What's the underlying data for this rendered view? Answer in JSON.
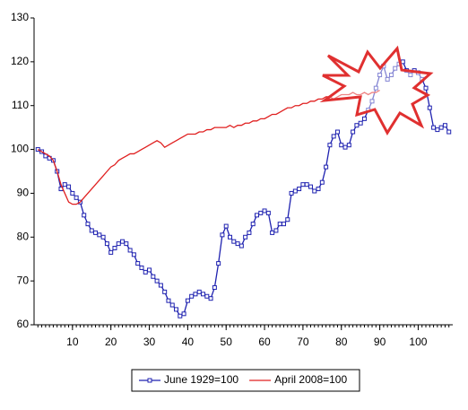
{
  "chart_data": {
    "type": "line",
    "x": [
      1,
      2,
      3,
      4,
      5,
      6,
      7,
      8,
      9,
      10,
      11,
      12,
      13,
      14,
      15,
      16,
      17,
      18,
      19,
      20,
      21,
      22,
      23,
      24,
      25,
      26,
      27,
      28,
      29,
      30,
      31,
      32,
      33,
      34,
      35,
      36,
      37,
      38,
      39,
      40,
      41,
      42,
      43,
      44,
      45,
      46,
      47,
      48,
      49,
      50,
      51,
      52,
      53,
      54,
      55,
      56,
      57,
      58,
      59,
      60,
      61,
      62,
      63,
      64,
      65,
      66,
      67,
      68,
      69,
      70,
      71,
      72,
      73,
      74,
      75,
      76,
      77,
      78,
      79,
      80,
      81,
      82,
      83,
      84,
      85,
      86,
      87,
      88,
      89,
      90,
      91,
      92,
      93,
      94,
      95,
      96,
      97,
      98,
      99,
      100,
      101,
      102,
      103,
      104,
      105,
      106,
      107,
      108
    ],
    "series": [
      {
        "name": "June 1929=100",
        "color": "#1f22b0",
        "marker": "square",
        "values": [
          100,
          99.5,
          98.5,
          98,
          97.5,
          95,
          91,
          92,
          91.5,
          90,
          89,
          88,
          85,
          83,
          81.5,
          81,
          80.5,
          80,
          78.5,
          76.5,
          77.5,
          78.5,
          79,
          78.5,
          77,
          76,
          74,
          73,
          72,
          72.5,
          71,
          70,
          69,
          67.5,
          65.5,
          64.5,
          63.5,
          62,
          62.5,
          65.5,
          66.5,
          67,
          67.5,
          67,
          66.5,
          66,
          68.5,
          74,
          80.5,
          82.5,
          80,
          79,
          78.5,
          78,
          80,
          81,
          83,
          85,
          85.5,
          86,
          85.5,
          81,
          81.5,
          83,
          83,
          84,
          90,
          90.5,
          91,
          92,
          92,
          91.5,
          90.5,
          91,
          92.5,
          96,
          101,
          103,
          104,
          101,
          100.5,
          101,
          104,
          105.5,
          106,
          107,
          109,
          111,
          114,
          117,
          119,
          116,
          117,
          118.5,
          119.5,
          120,
          118,
          117,
          118,
          117.5,
          116,
          114,
          109.5,
          105,
          104.5,
          105,
          105.5,
          104
        ]
      },
      {
        "name": "April 2008=100",
        "color": "#e02020",
        "marker": "none",
        "values": [
          100,
          99.5,
          99,
          98.5,
          97.5,
          95,
          92,
          90,
          88,
          87.5,
          87.5,
          88,
          89,
          90,
          91,
          92,
          93,
          94,
          95,
          96,
          96.5,
          97.5,
          98,
          98.5,
          99,
          99,
          99.5,
          100,
          100.5,
          101,
          101.5,
          102,
          101.5,
          100.5,
          101,
          101.5,
          102,
          102.5,
          103,
          103.5,
          103.5,
          103.5,
          104,
          104,
          104.5,
          104.5,
          105,
          105,
          105,
          105,
          105.5,
          105,
          105.5,
          105.5,
          106,
          106,
          106.5,
          106.5,
          107,
          107,
          107.5,
          108,
          108,
          108.5,
          109,
          109.5,
          109.5,
          110,
          110,
          110.5,
          110.5,
          111,
          111,
          111.5,
          111.5,
          112,
          112,
          111.5,
          112,
          112.5,
          112.5,
          112.5,
          113,
          112.5,
          112.5,
          113,
          112.5,
          113,
          113,
          113.5,
          null,
          null,
          null,
          null,
          null,
          null,
          null,
          null,
          null,
          null,
          null,
          null,
          null,
          null,
          null,
          null,
          null,
          null
        ]
      }
    ],
    "xlim": [
      0,
      109
    ],
    "xticks": [
      10,
      20,
      30,
      40,
      50,
      60,
      70,
      80,
      90,
      100
    ],
    "ylim": [
      60,
      130
    ],
    "yticks": [
      60,
      70,
      80,
      90,
      100,
      110,
      120,
      130
    ],
    "grid": false,
    "legend": "bottom"
  }
}
